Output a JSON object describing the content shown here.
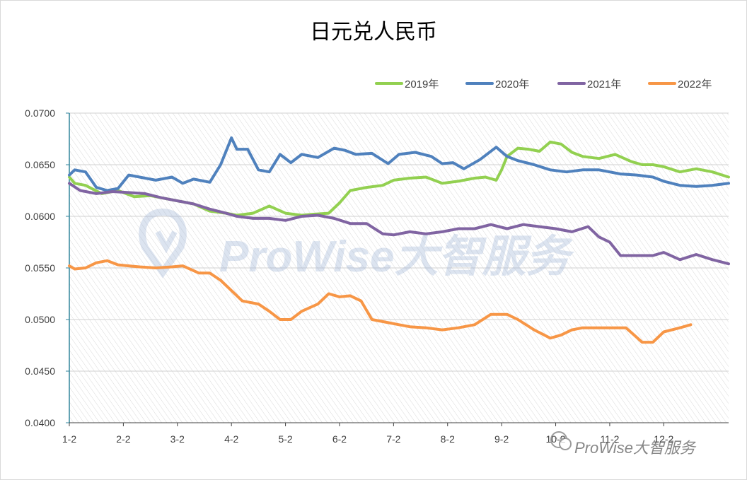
{
  "chart_data": {
    "type": "line",
    "title": "日元兑人民币",
    "xlabel": "",
    "ylabel": "",
    "ylim": [
      0.04,
      0.07
    ],
    "xlim": [
      0,
      12.2
    ],
    "yticks": [
      "0.0400",
      "0.0450",
      "0.0500",
      "0.0550",
      "0.0600",
      "0.0650",
      "0.0700"
    ],
    "categories": [
      "1-2",
      "2-2",
      "3-2",
      "4-2",
      "5-2",
      "6-2",
      "7-2",
      "8-2",
      "9-2",
      "10-2",
      "11-2",
      "12-2"
    ],
    "legend_position": "top-right",
    "series": [
      {
        "name": "2019年",
        "color": "#92d050",
        "x": [
          0,
          0.1,
          0.3,
          0.6,
          0.9,
          1.2,
          1.5,
          1.8,
          2.0,
          2.3,
          2.6,
          2.9,
          3.1,
          3.4,
          3.7,
          4.0,
          4.3,
          4.5,
          4.8,
          5.0,
          5.2,
          5.5,
          5.8,
          6.0,
          6.3,
          6.6,
          6.9,
          7.2,
          7.5,
          7.7,
          7.9,
          8.0,
          8.1,
          8.3,
          8.5,
          8.7,
          8.9,
          9.1,
          9.3,
          9.5,
          9.8,
          10.1,
          10.4,
          10.6,
          10.8,
          11.0,
          11.3,
          11.6,
          11.9,
          12.2
        ],
        "values": [
          0.0638,
          0.0632,
          0.063,
          0.0622,
          0.0625,
          0.0619,
          0.062,
          0.0617,
          0.0615,
          0.0612,
          0.0605,
          0.0603,
          0.0601,
          0.0603,
          0.061,
          0.0603,
          0.0601,
          0.0602,
          0.0603,
          0.0613,
          0.0625,
          0.0628,
          0.063,
          0.0635,
          0.0637,
          0.0638,
          0.0632,
          0.0634,
          0.0637,
          0.0638,
          0.0635,
          0.0645,
          0.0658,
          0.0666,
          0.0665,
          0.0663,
          0.0672,
          0.067,
          0.0662,
          0.0658,
          0.0656,
          0.066,
          0.0653,
          0.065,
          0.065,
          0.0648,
          0.0643,
          0.0646,
          0.0643,
          0.0638
        ]
      },
      {
        "name": "2020年",
        "color": "#4f81bd",
        "x": [
          0,
          0.1,
          0.3,
          0.5,
          0.7,
          0.9,
          1.1,
          1.3,
          1.6,
          1.9,
          2.1,
          2.3,
          2.6,
          2.8,
          3.0,
          3.1,
          3.3,
          3.5,
          3.7,
          3.9,
          4.1,
          4.3,
          4.6,
          4.9,
          5.1,
          5.3,
          5.6,
          5.9,
          6.1,
          6.4,
          6.7,
          6.9,
          7.1,
          7.3,
          7.6,
          7.9,
          8.1,
          8.3,
          8.6,
          8.9,
          9.2,
          9.5,
          9.8,
          10.0,
          10.2,
          10.5,
          10.8,
          11.0,
          11.3,
          11.6,
          11.9,
          12.2
        ],
        "values": [
          0.064,
          0.0645,
          0.0643,
          0.0628,
          0.0625,
          0.0627,
          0.064,
          0.0638,
          0.0635,
          0.0638,
          0.0632,
          0.0636,
          0.0633,
          0.065,
          0.0676,
          0.0665,
          0.0665,
          0.0645,
          0.0643,
          0.066,
          0.0652,
          0.066,
          0.0657,
          0.0666,
          0.0664,
          0.066,
          0.0661,
          0.0651,
          0.066,
          0.0662,
          0.0658,
          0.0651,
          0.0652,
          0.0646,
          0.0655,
          0.0667,
          0.0658,
          0.0654,
          0.065,
          0.0645,
          0.0643,
          0.0645,
          0.0645,
          0.0643,
          0.0641,
          0.064,
          0.0638,
          0.0634,
          0.063,
          0.0629,
          0.063,
          0.0632
        ]
      },
      {
        "name": "2021年",
        "color": "#8064a2",
        "x": [
          0,
          0.2,
          0.5,
          0.8,
          1.1,
          1.4,
          1.7,
          2.0,
          2.3,
          2.6,
          2.9,
          3.1,
          3.4,
          3.7,
          4.0,
          4.3,
          4.6,
          4.9,
          5.2,
          5.5,
          5.8,
          6.0,
          6.3,
          6.6,
          6.9,
          7.2,
          7.5,
          7.8,
          8.1,
          8.4,
          8.7,
          9.0,
          9.3,
          9.6,
          9.8,
          10.0,
          10.2,
          10.5,
          10.8,
          11.0,
          11.3,
          11.6,
          11.9,
          12.2
        ],
        "values": [
          0.0632,
          0.0625,
          0.0622,
          0.0624,
          0.0623,
          0.0622,
          0.0618,
          0.0615,
          0.0612,
          0.0607,
          0.0603,
          0.06,
          0.0598,
          0.0598,
          0.0596,
          0.06,
          0.0601,
          0.0598,
          0.0593,
          0.0593,
          0.0583,
          0.0582,
          0.0585,
          0.0583,
          0.0585,
          0.0588,
          0.0588,
          0.0592,
          0.0588,
          0.0592,
          0.059,
          0.0588,
          0.0585,
          0.059,
          0.058,
          0.0575,
          0.0562,
          0.0562,
          0.0562,
          0.0565,
          0.0558,
          0.0563,
          0.0558,
          0.0554
        ]
      },
      {
        "name": "2022年",
        "color": "#f79646",
        "x": [
          0,
          0.1,
          0.3,
          0.5,
          0.7,
          0.9,
          1.1,
          1.3,
          1.6,
          1.9,
          2.1,
          2.4,
          2.6,
          2.8,
          3.0,
          3.2,
          3.5,
          3.7,
          3.9,
          4.1,
          4.3,
          4.6,
          4.8,
          5.0,
          5.2,
          5.4,
          5.6,
          5.9,
          6.1,
          6.3,
          6.6,
          6.9,
          7.2,
          7.5,
          7.8,
          7.9,
          8.1,
          8.3,
          8.6,
          8.9,
          9.1,
          9.3,
          9.5,
          9.7,
          10.0,
          10.3,
          10.6,
          10.8,
          11.0,
          11.3,
          11.5
        ],
        "values": [
          0.0552,
          0.0549,
          0.055,
          0.0555,
          0.0557,
          0.0553,
          0.0552,
          0.0551,
          0.055,
          0.0551,
          0.0552,
          0.0545,
          0.0545,
          0.0538,
          0.0528,
          0.0518,
          0.0515,
          0.0508,
          0.05,
          0.05,
          0.0508,
          0.0515,
          0.0525,
          0.0522,
          0.0523,
          0.0518,
          0.05,
          0.0497,
          0.0495,
          0.0493,
          0.0492,
          0.049,
          0.0492,
          0.0495,
          0.0505,
          0.0505,
          0.0505,
          0.05,
          0.049,
          0.0482,
          0.0485,
          0.049,
          0.0492,
          0.0492,
          0.0492,
          0.0492,
          0.0478,
          0.0478,
          0.0488,
          0.0492,
          0.0495
        ]
      }
    ]
  },
  "watermark": {
    "center_text": "ProWise大智服务",
    "corner_text": "ProWise大智服务"
  }
}
